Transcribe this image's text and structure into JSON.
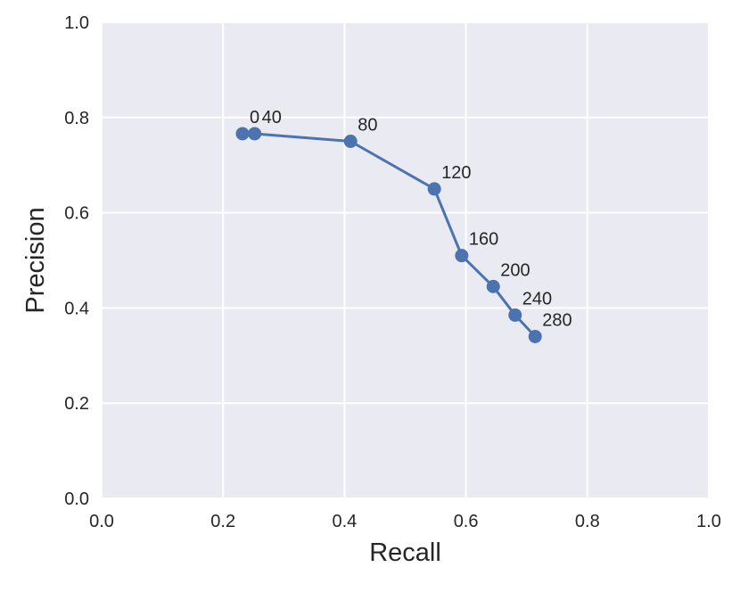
{
  "chart_data": {
    "type": "line",
    "xlabel": "Recall",
    "ylabel": "Precision",
    "xlim": [
      0.0,
      1.0
    ],
    "ylim": [
      0.0,
      1.0
    ],
    "xticks": [
      "0.0",
      "0.2",
      "0.4",
      "0.6",
      "0.8",
      "1.0"
    ],
    "yticks": [
      "0.0",
      "0.2",
      "0.4",
      "0.6",
      "0.8",
      "1.0"
    ],
    "grid": true,
    "series": [
      {
        "color": "#4c72b0",
        "points": [
          {
            "x": 0.232,
            "y": 0.766,
            "label": "0"
          },
          {
            "x": 0.252,
            "y": 0.766,
            "label": "40"
          },
          {
            "x": 0.41,
            "y": 0.75,
            "label": "80"
          },
          {
            "x": 0.548,
            "y": 0.65,
            "label": "120"
          },
          {
            "x": 0.593,
            "y": 0.51,
            "label": "160"
          },
          {
            "x": 0.645,
            "y": 0.445,
            "label": "200"
          },
          {
            "x": 0.681,
            "y": 0.385,
            "label": "240"
          },
          {
            "x": 0.714,
            "y": 0.34,
            "label": "280"
          }
        ]
      }
    ]
  }
}
